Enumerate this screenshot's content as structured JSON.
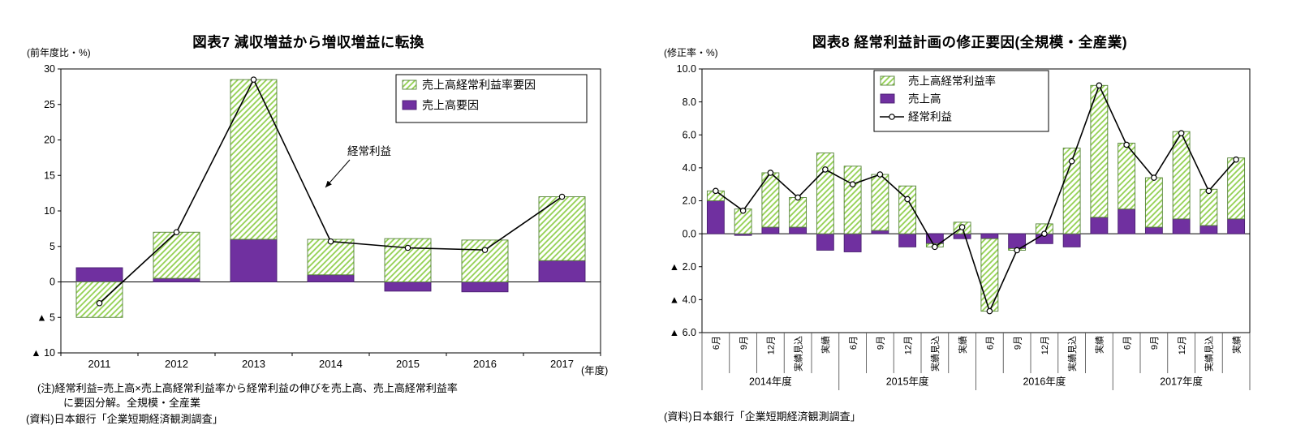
{
  "colors": {
    "rate_fill": "#92D050",
    "rate_edge": "#538135",
    "sales_fill": "#7030A0",
    "sales_edge": "#4A2170",
    "line": "#000000",
    "axis": "#000000",
    "separator": "#595959"
  },
  "chart7": {
    "title": "図表7  減収増益から増収増益に転換",
    "y_unit": "(前年度比・%)",
    "x_unit": "(年度)",
    "annotation": "経常利益",
    "note_line1": "(注)経常利益=売上高×売上高経常利益率から経常利益の伸びを売上高、売上高経常利益率",
    "note_line2": "に要因分解。全規模・全産業",
    "source": "(資料)日本銀行「企業短期経済観測調査」"
  },
  "chart8": {
    "title": "図表8  経常利益計画の修正要因(全規模・全産業)",
    "y_unit": "(修正率・%)",
    "source": "(資料)日本銀行「企業短期経済観測調査」"
  },
  "chart_data": [
    {
      "type": "bar",
      "title": "図表7 減収増益から増収増益に転換",
      "ylabel": "(前年度比・%)",
      "xlabel": "(年度)",
      "ylim": [
        -10,
        30
      ],
      "yticks": [
        30,
        25,
        20,
        15,
        10,
        5,
        0,
        -5,
        -10
      ],
      "ytick_labels": [
        "30",
        "25",
        "20",
        "15",
        "10",
        "5",
        "0",
        "▲ 5",
        "▲ 10"
      ],
      "grid": false,
      "legend_position": "top-right",
      "categories": [
        "2011",
        "2012",
        "2013",
        "2014",
        "2015",
        "2016",
        "2017"
      ],
      "series": [
        {
          "name": "売上高要因",
          "type": "bar",
          "style": "sales",
          "values": [
            2,
            0.5,
            6,
            1,
            -1.3,
            -1.4,
            3
          ]
        },
        {
          "name": "売上高経常利益率要因",
          "type": "bar",
          "style": "rate",
          "values": [
            -5,
            6.5,
            22.5,
            5,
            6.1,
            5.9,
            9
          ]
        },
        {
          "name": "経常利益",
          "type": "line",
          "values": [
            -3,
            7,
            28.5,
            5.7,
            4.8,
            4.5,
            12
          ]
        }
      ]
    },
    {
      "type": "bar",
      "title": "図表8 経常利益計画の修正要因(全規模・全産業)",
      "ylabel": "(修正率・%)",
      "ylim": [
        -6,
        10
      ],
      "yticks": [
        10,
        8,
        6,
        4,
        2,
        0,
        -2,
        -4,
        -6
      ],
      "ytick_labels": [
        "10.0",
        "8.0",
        "6.0",
        "4.0",
        "2.0",
        "0.0",
        "▲ 2.0",
        "▲ 4.0",
        "▲ 6.0"
      ],
      "grid": false,
      "legend_position": "top-center",
      "groups": [
        {
          "label": "2014年度",
          "categories": [
            "6月",
            "9月",
            "12月",
            "実績見込",
            "実績"
          ]
        },
        {
          "label": "2015年度",
          "categories": [
            "6月",
            "9月",
            "12月",
            "実績見込",
            "実績"
          ]
        },
        {
          "label": "2016年度",
          "categories": [
            "6月",
            "9月",
            "12月",
            "実績見込",
            "実績"
          ]
        },
        {
          "label": "2017年度",
          "categories": [
            "6月",
            "9月",
            "12月",
            "実績見込",
            "実績"
          ]
        }
      ],
      "series": [
        {
          "name": "売上高",
          "type": "bar",
          "style": "sales",
          "values": [
            2.0,
            -0.1,
            0.4,
            0.4,
            -1.0,
            -1.1,
            0.2,
            -0.8,
            -0.6,
            -0.3,
            -0.3,
            -0.9,
            -0.6,
            -0.8,
            1.0,
            1.5,
            0.4,
            0.9,
            0.5,
            0.9
          ]
        },
        {
          "name": "売上高経常利益率",
          "type": "bar",
          "style": "rate",
          "values": [
            0.6,
            1.5,
            3.3,
            1.8,
            4.9,
            4.1,
            3.4,
            2.9,
            -0.2,
            0.7,
            -4.4,
            -0.1,
            0.6,
            5.2,
            8.0,
            4.0,
            3.0,
            5.3,
            2.2,
            3.7
          ]
        },
        {
          "name": "経常利益",
          "type": "line",
          "values": [
            2.6,
            1.4,
            3.7,
            2.2,
            3.9,
            3.0,
            3.6,
            2.1,
            -0.8,
            0.4,
            -4.7,
            -1.0,
            0.0,
            4.4,
            9.0,
            5.4,
            3.4,
            6.1,
            2.6,
            4.5
          ]
        }
      ]
    }
  ]
}
